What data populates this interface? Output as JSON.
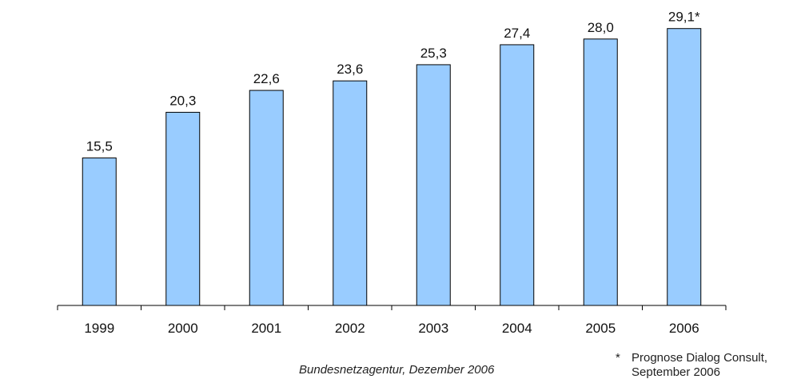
{
  "chart_data": {
    "type": "bar",
    "categories": [
      "1999",
      "2000",
      "2001",
      "2002",
      "2003",
      "2004",
      "2005",
      "2006"
    ],
    "values": [
      15.5,
      20.3,
      22.6,
      23.6,
      25.3,
      27.4,
      28.0,
      29.1
    ],
    "value_labels": [
      "15,5",
      "20,3",
      "22,6",
      "23,6",
      "25,3",
      "27,4",
      "28,0",
      "29,1*"
    ],
    "ylim": [
      0,
      30
    ],
    "grid": false,
    "legend": "none",
    "bar_color": "#99CCFF",
    "bar_border": "#000000"
  },
  "source": "Bundesnetzagentur, Dezember 2006",
  "footnote": {
    "marker": "*",
    "line1": "Prognose Dialog Consult,",
    "line2": "September 2006"
  }
}
